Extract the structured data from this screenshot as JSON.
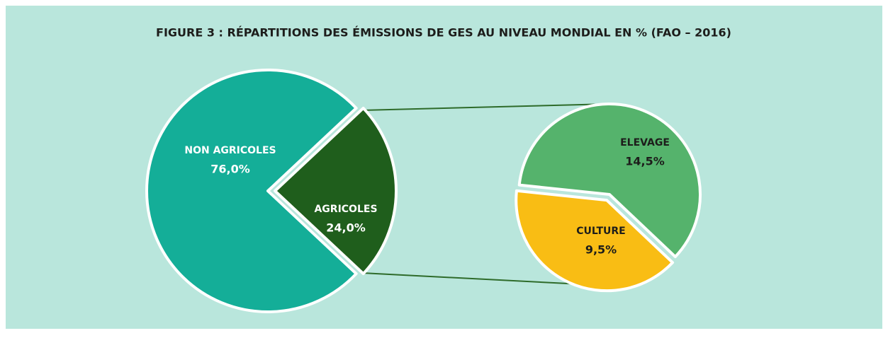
{
  "title": "FIGURE 3 : RÉPARTITIONS DES ÉMISSIONS DE GES AU NIVEAU MONDIAL EN % (FAO – 2016)",
  "chart_data": [
    {
      "type": "pie",
      "categories": [
        "NON AGRICOLES",
        "AGRICOLES"
      ],
      "values": [
        76.0,
        24.0
      ],
      "value_labels": [
        "76,0%",
        "24,0%"
      ],
      "colors": [
        "#14ae98",
        "#1f5e1c"
      ]
    },
    {
      "type": "pie",
      "categories": [
        "ELEVAGE",
        "CULTURE"
      ],
      "values": [
        14.5,
        9.5
      ],
      "value_labels": [
        "14,5%",
        "9,5%"
      ],
      "colors": [
        "#55b36c",
        "#f9bd14"
      ]
    }
  ]
}
